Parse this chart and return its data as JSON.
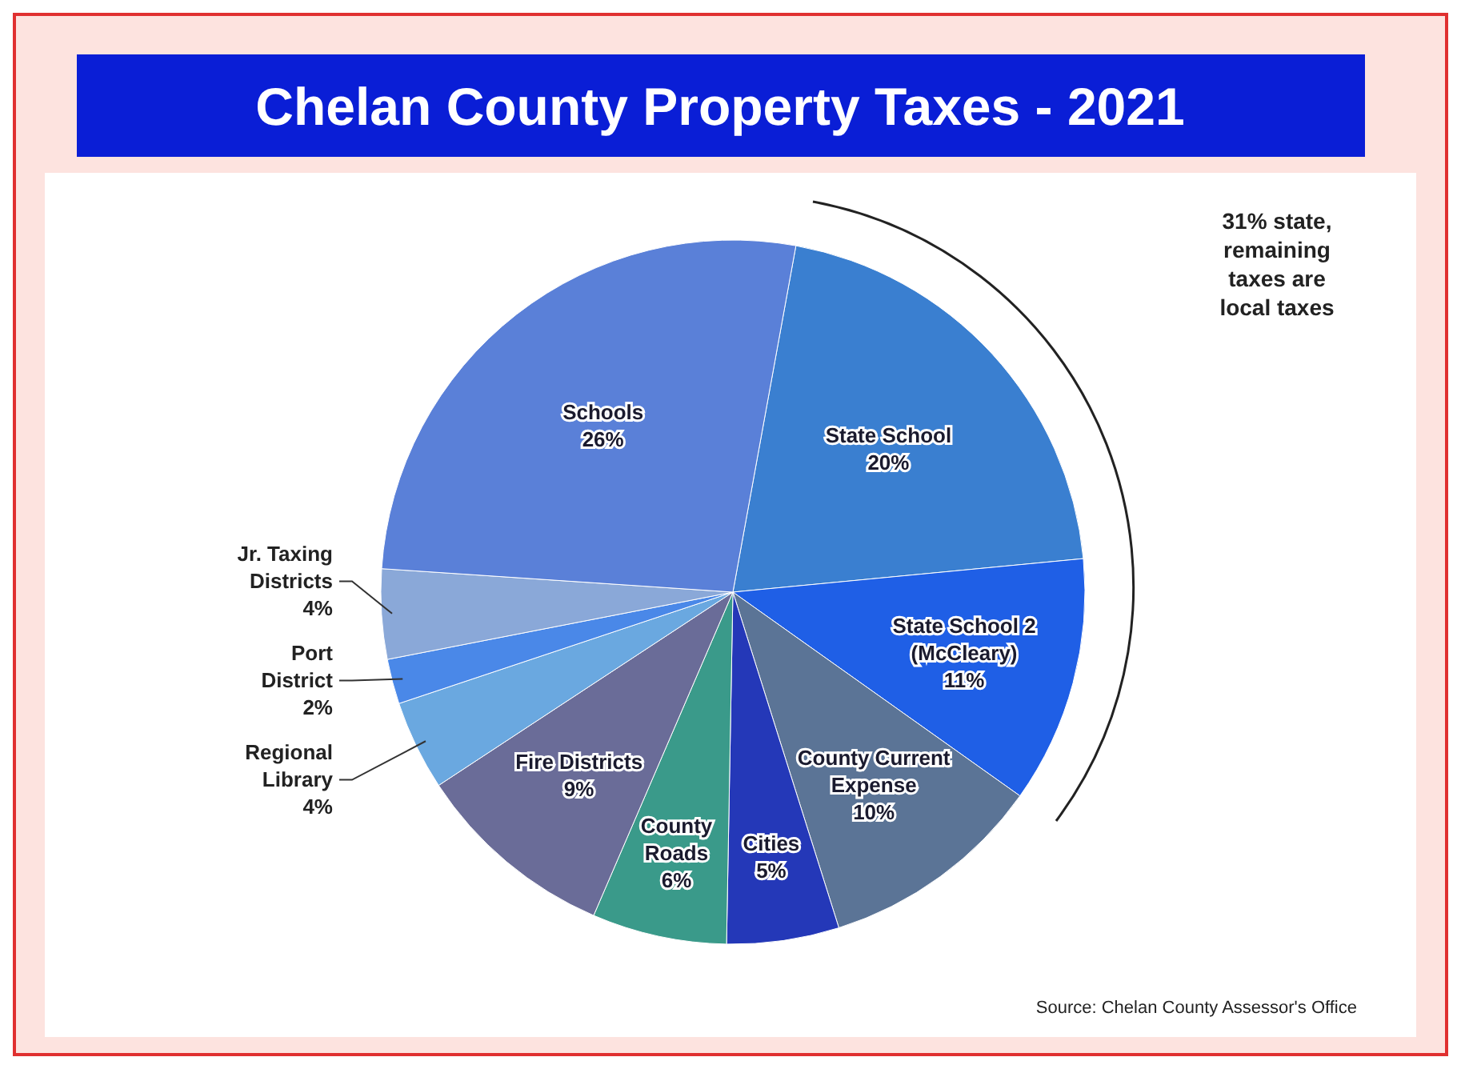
{
  "chart_data": {
    "type": "pie",
    "title": "Chelan County Property Taxes - 2021",
    "categories": [
      "State School",
      "State School 2 (McCleary)",
      "County Current Expense",
      "Cities",
      "County Roads",
      "Fire Districts",
      "Regional Library",
      "Port District",
      "Jr. Taxing Districts",
      "Schools"
    ],
    "values": [
      20,
      11,
      10,
      5,
      6,
      9,
      4,
      2,
      4,
      26
    ],
    "value_labels": [
      "20%",
      "11%",
      "10%",
      "5%",
      "6%",
      "9%",
      "4%",
      "2%",
      "4%",
      "26%"
    ],
    "colors": [
      "#3a7fd0",
      "#1f5fe6",
      "#5b7496",
      "#2438b8",
      "#3a9a8a",
      "#6a6c98",
      "#6aa8e0",
      "#4a88e8",
      "#8aa8d8",
      "#5a80d8"
    ],
    "annotations": [
      "31% state, remaining taxes are local taxes",
      "Source: Chelan County Assessor's Office"
    ]
  }
}
